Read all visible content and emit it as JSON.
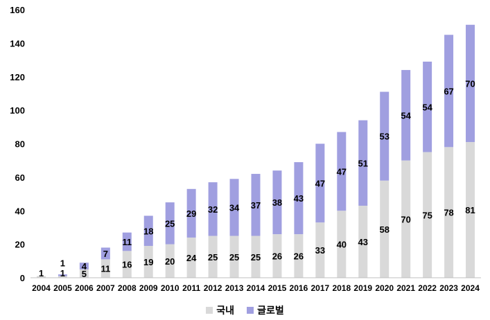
{
  "chart_data": {
    "type": "bar",
    "stacked": true,
    "categories": [
      "2004",
      "2005",
      "2006",
      "2007",
      "2008",
      "2009",
      "2010",
      "2011",
      "2012",
      "2013",
      "2014",
      "2015",
      "2016",
      "2017",
      "2018",
      "2019",
      "2020",
      "2021",
      "2022",
      "2023",
      "2024"
    ],
    "series": [
      {
        "name": "국내",
        "color": "#d9d9d9",
        "values": [
          1,
          1,
          5,
          11,
          16,
          19,
          20,
          24,
          25,
          25,
          25,
          26,
          26,
          33,
          40,
          43,
          58,
          70,
          75,
          78,
          81
        ],
        "labels": [
          "1",
          "1",
          "5",
          "11",
          "16",
          "19",
          "20",
          "24",
          "25",
          "25",
          "25",
          "26",
          "26",
          "33",
          "40",
          "43",
          "58",
          "70",
          "75",
          "78",
          "81"
        ]
      },
      {
        "name": "글로벌",
        "color": "#a09fe0",
        "values": [
          0,
          1,
          4,
          7,
          11,
          18,
          25,
          29,
          32,
          34,
          37,
          38,
          43,
          47,
          47,
          51,
          53,
          54,
          54,
          67,
          70
        ],
        "labels": [
          "",
          "1",
          "4",
          "7",
          "11",
          "18",
          "25",
          "29",
          "32",
          "34",
          "37",
          "38",
          "43",
          "47",
          "47",
          "51",
          "53",
          "54",
          "54",
          "67",
          "70"
        ]
      }
    ],
    "ylim": [
      0,
      160
    ],
    "yticks": [
      "0",
      "20",
      "40",
      "60",
      "80",
      "100",
      "120",
      "140",
      "160"
    ],
    "grid": false,
    "legend_position": "bottom"
  }
}
